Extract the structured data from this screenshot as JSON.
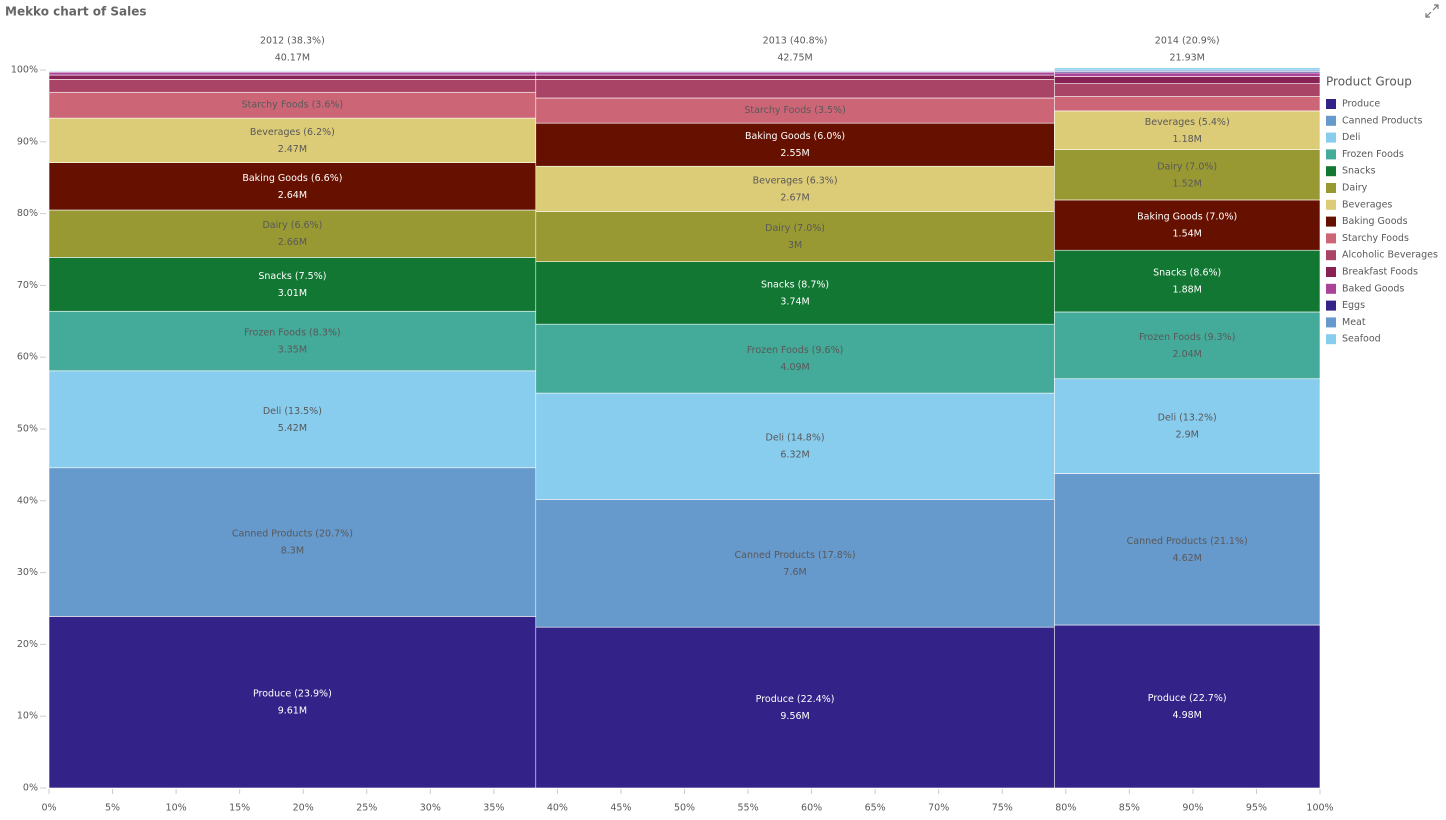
{
  "chart_data": {
    "type": "mekko",
    "title": "Mekko chart of Sales",
    "legend_title": "Product Group",
    "legend": [
      {
        "name": "Produce",
        "color": "#332288"
      },
      {
        "name": "Canned Products",
        "color": "#6699cc"
      },
      {
        "name": "Deli",
        "color": "#88ccee"
      },
      {
        "name": "Frozen Foods",
        "color": "#44aa99"
      },
      {
        "name": "Snacks",
        "color": "#117733"
      },
      {
        "name": "Dairy",
        "color": "#999933"
      },
      {
        "name": "Beverages",
        "color": "#ddcc77"
      },
      {
        "name": "Baking Goods",
        "color": "#661100"
      },
      {
        "name": "Starchy Foods",
        "color": "#cc6677"
      },
      {
        "name": "Alcoholic Beverages",
        "color": "#aa4466"
      },
      {
        "name": "Breakfast Foods",
        "color": "#882255"
      },
      {
        "name": "Baked Goods",
        "color": "#aa4499"
      },
      {
        "name": "Eggs",
        "color": "#332288"
      },
      {
        "name": "Meat",
        "color": "#6699cc"
      },
      {
        "name": "Seafood",
        "color": "#88ccee"
      }
    ],
    "legend_position": "right",
    "xlim": [
      0,
      100
    ],
    "xticks": [
      {
        "value": 0,
        "label": "0%"
      },
      {
        "value": 5,
        "label": "5%"
      },
      {
        "value": 10,
        "label": "10%"
      },
      {
        "value": 15,
        "label": "15%"
      },
      {
        "value": 20,
        "label": "20%"
      },
      {
        "value": 25,
        "label": "25%"
      },
      {
        "value": 30,
        "label": "30%"
      },
      {
        "value": 35,
        "label": "35%"
      },
      {
        "value": 40,
        "label": "40%"
      },
      {
        "value": 45,
        "label": "45%"
      },
      {
        "value": 50,
        "label": "50%"
      },
      {
        "value": 55,
        "label": "55%"
      },
      {
        "value": 60,
        "label": "60%"
      },
      {
        "value": 65,
        "label": "65%"
      },
      {
        "value": 70,
        "label": "70%"
      },
      {
        "value": 75,
        "label": "75%"
      },
      {
        "value": 80,
        "label": "80%"
      },
      {
        "value": 85,
        "label": "85%"
      },
      {
        "value": 90,
        "label": "90%"
      },
      {
        "value": 95,
        "label": "95%"
      },
      {
        "value": 100,
        "label": "100%"
      }
    ],
    "ylim": [
      0,
      100
    ],
    "yticks": [
      {
        "value": 0,
        "label": "0%"
      },
      {
        "value": 10,
        "label": "10%"
      },
      {
        "value": 20,
        "label": "20%"
      },
      {
        "value": 30,
        "label": "30%"
      },
      {
        "value": 40,
        "label": "40%"
      },
      {
        "value": 50,
        "label": "50%"
      },
      {
        "value": 60,
        "label": "60%"
      },
      {
        "value": 70,
        "label": "70%"
      },
      {
        "value": 80,
        "label": "80%"
      },
      {
        "value": 90,
        "label": "90%"
      },
      {
        "value": 100,
        "label": "100%"
      }
    ],
    "columns": [
      {
        "width": 38.3,
        "label": "2012 (38.3%)",
        "total_label": "40.17M",
        "segments": [
          {
            "name": "Produce",
            "value": 23.9,
            "value_label": "Produce (23.9%)",
            "sales_label": "9.61M"
          },
          {
            "name": "Canned Products",
            "value": 20.7,
            "value_label": "Canned Products (20.7%)",
            "sales_label": "8.3M"
          },
          {
            "name": "Deli",
            "value": 13.5,
            "value_label": "Deli (13.5%)",
            "sales_label": "5.42M"
          },
          {
            "name": "Frozen Foods",
            "value": 8.3,
            "value_label": "Frozen Foods (8.3%)",
            "sales_label": "3.35M"
          },
          {
            "name": "Snacks",
            "value": 7.5,
            "value_label": "Snacks (7.5%)",
            "sales_label": "3.01M"
          },
          {
            "name": "Dairy",
            "value": 6.6,
            "value_label": "Dairy (6.6%)",
            "sales_label": "2.66M"
          },
          {
            "name": "Baking Goods",
            "value": 6.6,
            "value_label": "Baking Goods (6.6%)",
            "sales_label": "2.64M"
          },
          {
            "name": "Beverages",
            "value": 6.2,
            "value_label": "Beverages (6.2%)",
            "sales_label": "2.47M"
          },
          {
            "name": "Starchy Foods",
            "value": 3.6,
            "value_label": "Starchy Foods (3.6%)"
          },
          {
            "name": "Alcoholic Beverages",
            "value": 1.8
          },
          {
            "name": "Breakfast Foods",
            "value": 0.6
          },
          {
            "name": "Baked Goods",
            "value": 0.4
          },
          {
            "name": "Eggs",
            "value": 0.1
          },
          {
            "name": "Meat",
            "value": 0.1
          },
          {
            "name": "Seafood",
            "value": 0.1
          }
        ]
      },
      {
        "width": 40.8,
        "label": "2013 (40.8%)",
        "total_label": "42.75M",
        "segments": [
          {
            "name": "Produce",
            "value": 22.4,
            "value_label": "Produce (22.4%)",
            "sales_label": "9.56M"
          },
          {
            "name": "Canned Products",
            "value": 17.8,
            "value_label": "Canned Products (17.8%)",
            "sales_label": "7.6M"
          },
          {
            "name": "Deli",
            "value": 14.8,
            "value_label": "Deli (14.8%)",
            "sales_label": "6.32M"
          },
          {
            "name": "Frozen Foods",
            "value": 9.6,
            "value_label": "Frozen Foods (9.6%)",
            "sales_label": "4.09M"
          },
          {
            "name": "Snacks",
            "value": 8.7,
            "value_label": "Snacks (8.7%)",
            "sales_label": "3.74M"
          },
          {
            "name": "Dairy",
            "value": 7.0,
            "value_label": "Dairy (7.0%)",
            "sales_label": "3M"
          },
          {
            "name": "Beverages",
            "value": 6.3,
            "value_label": "Beverages (6.3%)",
            "sales_label": "2.67M"
          },
          {
            "name": "Baking Goods",
            "value": 6.0,
            "value_label": "Baking Goods (6.0%)",
            "sales_label": "2.55M"
          },
          {
            "name": "Starchy Foods",
            "value": 3.5,
            "value_label": "Starchy Foods (3.5%)"
          },
          {
            "name": "Alcoholic Beverages",
            "value": 2.6
          },
          {
            "name": "Breakfast Foods",
            "value": 0.6
          },
          {
            "name": "Baked Goods",
            "value": 0.4
          },
          {
            "name": "Eggs",
            "value": 0.1
          },
          {
            "name": "Meat",
            "value": 0.1
          },
          {
            "name": "Seafood",
            "value": 0.1
          }
        ]
      },
      {
        "width": 20.9,
        "label": "2014 (20.9%)",
        "total_label": "21.93M",
        "segments": [
          {
            "name": "Produce",
            "value": 22.7,
            "value_label": "Produce (22.7%)",
            "sales_label": "4.98M"
          },
          {
            "name": "Canned Products",
            "value": 21.1,
            "value_label": "Canned Products (21.1%)",
            "sales_label": "4.62M"
          },
          {
            "name": "Deli",
            "value": 13.2,
            "value_label": "Deli (13.2%)",
            "sales_label": "2.9M"
          },
          {
            "name": "Frozen Foods",
            "value": 9.3,
            "value_label": "Frozen Foods (9.3%)",
            "sales_label": "2.04M"
          },
          {
            "name": "Snacks",
            "value": 8.6,
            "value_label": "Snacks (8.6%)",
            "sales_label": "1.88M"
          },
          {
            "name": "Baking Goods",
            "value": 7.0,
            "value_label": "Baking Goods (7.0%)",
            "sales_label": "1.54M"
          },
          {
            "name": "Dairy",
            "value": 7.0,
            "value_label": "Dairy (7.0%)",
            "sales_label": "1.52M"
          },
          {
            "name": "Beverages",
            "value": 5.4,
            "value_label": "Beverages (5.4%)",
            "sales_label": "1.18M"
          },
          {
            "name": "Starchy Foods",
            "value": 2.0
          },
          {
            "name": "Alcoholic Beverages",
            "value": 1.8
          },
          {
            "name": "Breakfast Foods",
            "value": 1.0
          },
          {
            "name": "Baked Goods",
            "value": 0.5
          },
          {
            "name": "Eggs",
            "value": 0.2
          },
          {
            "name": "Meat",
            "value": 0.2
          },
          {
            "name": "Seafood",
            "value": 0.3
          }
        ]
      }
    ]
  }
}
